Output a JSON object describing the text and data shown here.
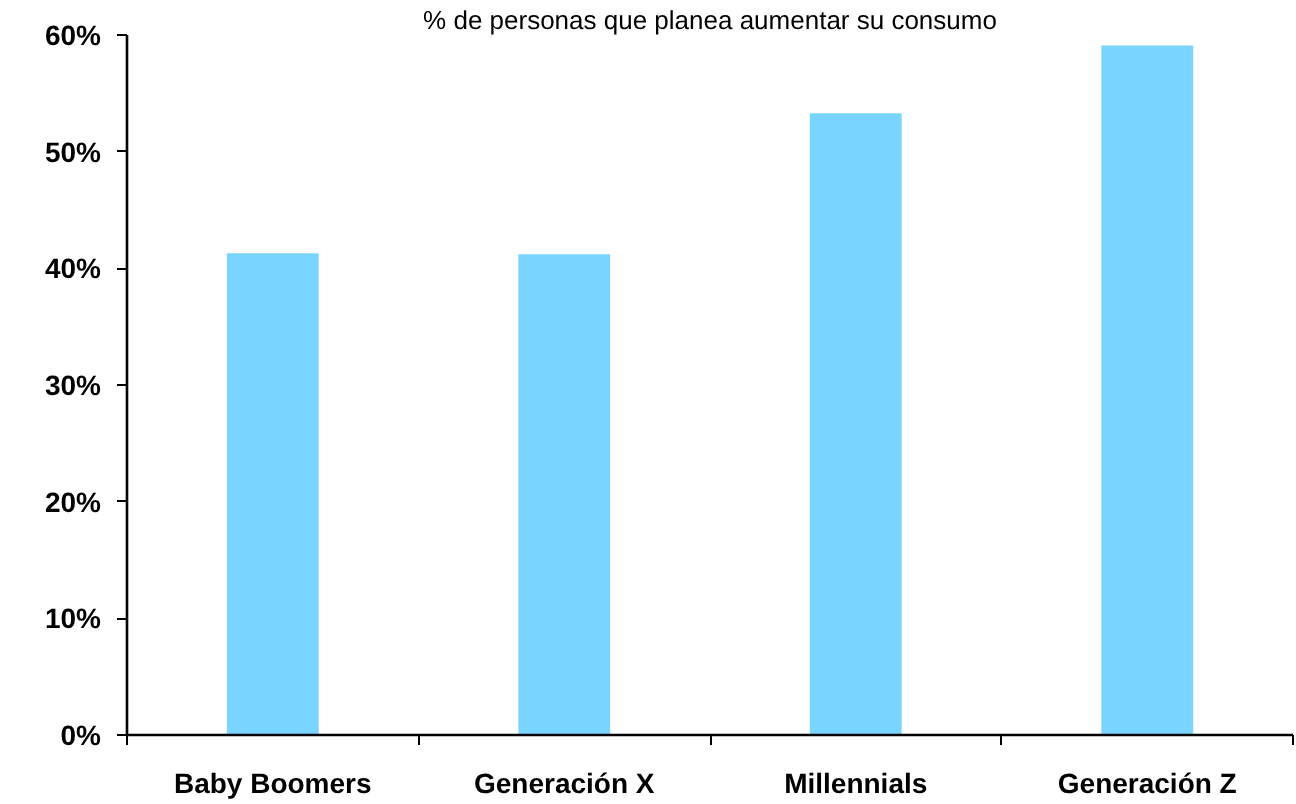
{
  "chart_data": {
    "type": "bar",
    "title": "% de personas que planea aumentar su consumo",
    "categories": [
      "Baby Boomers",
      "Generación X",
      "Millennials",
      "Generación Z"
    ],
    "values": [
      41.3,
      41.2,
      53.3,
      59.1
    ],
    "color": "#79d4ff",
    "ylim": [
      0,
      60
    ],
    "yticks": [
      {
        "value": 0,
        "label": "0%"
      },
      {
        "value": 10,
        "label": "10%"
      },
      {
        "value": 20,
        "label": "20%"
      },
      {
        "value": 30,
        "label": "30%"
      },
      {
        "value": 40,
        "label": "40%"
      },
      {
        "value": 50,
        "label": "50%"
      },
      {
        "value": 60,
        "label": "60%"
      }
    ],
    "grid": false
  }
}
